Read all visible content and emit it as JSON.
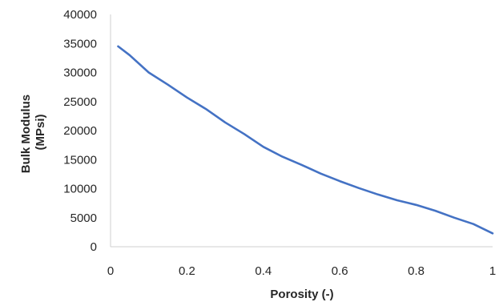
{
  "chart_data": {
    "type": "line",
    "title": "",
    "xlabel": "Porosity (-)",
    "ylabel_lines": [
      "Bulk Modulus",
      "(MPsi)"
    ],
    "xlim": [
      0,
      1
    ],
    "ylim": [
      0,
      40000
    ],
    "x_ticks": [
      "0",
      "0.2",
      "0.4",
      "0.6",
      "0.8",
      "1"
    ],
    "x_tick_values": [
      0,
      0.2,
      0.4,
      0.6,
      0.8,
      1
    ],
    "y_ticks": [
      "0",
      "5000",
      "10000",
      "15000",
      "20000",
      "25000",
      "30000",
      "35000",
      "40000"
    ],
    "y_tick_values": [
      0,
      5000,
      10000,
      15000,
      20000,
      25000,
      30000,
      35000,
      40000
    ],
    "grid": false,
    "legend": "none",
    "series": [
      {
        "color": "#4472c4",
        "x": [
          0.02,
          0.05,
          0.1,
          0.15,
          0.2,
          0.25,
          0.3,
          0.35,
          0.4,
          0.45,
          0.5,
          0.55,
          0.6,
          0.65,
          0.7,
          0.75,
          0.8,
          0.85,
          0.9,
          0.95,
          1.0
        ],
        "y": [
          34500,
          33000,
          30000,
          27900,
          25700,
          23700,
          21400,
          19400,
          17200,
          15500,
          14100,
          12600,
          11300,
          10100,
          9000,
          8000,
          7200,
          6200,
          5000,
          3900,
          2300
        ]
      }
    ]
  }
}
